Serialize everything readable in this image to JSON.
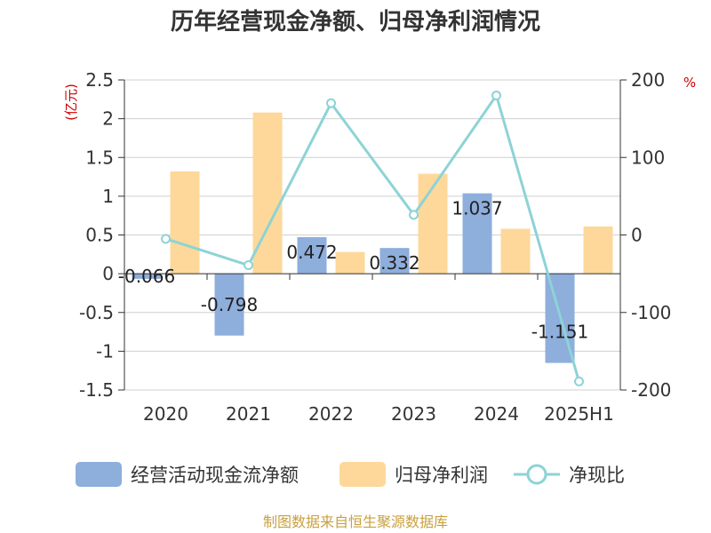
{
  "chart_data": {
    "type": "bar",
    "title": "历年经营现金净额、归母净利润情况",
    "categories": [
      "2020",
      "2021",
      "2022",
      "2023",
      "2024",
      "2025H1"
    ],
    "left_axis": {
      "unit": "(亿元)",
      "ylim": [
        -1.5,
        2.5
      ],
      "ticks": [
        2.5,
        2,
        1.5,
        1,
        0.5,
        0,
        -0.5,
        -1,
        -1.5
      ],
      "tick_labels": [
        "2.5",
        "2",
        "1.5",
        "1",
        "0.5",
        "0",
        "-0.5",
        "-1",
        "-1.5"
      ]
    },
    "right_axis": {
      "unit": "%",
      "ylim": [
        -200,
        200
      ],
      "ticks": [
        200,
        100,
        0,
        -100,
        -200
      ],
      "tick_labels": [
        "200",
        "100",
        "0",
        "-100",
        "-200"
      ]
    },
    "series": [
      {
        "name": "经营活动现金流净额",
        "type": "bar",
        "axis": "left",
        "color": "#8eaedc",
        "values": [
          -0.066,
          -0.798,
          0.472,
          0.332,
          1.037,
          -1.151
        ],
        "labels": [
          "-0.066",
          "-0.798",
          "0.472",
          "0.332",
          "1.037",
          "-1.151"
        ]
      },
      {
        "name": "归母净利润",
        "type": "bar",
        "axis": "left",
        "color": "#fdd89a",
        "values": [
          1.32,
          2.08,
          0.28,
          1.29,
          0.58,
          0.61
        ]
      },
      {
        "name": "净现比",
        "type": "line",
        "axis": "right",
        "color": "#8dd3d6",
        "values": [
          -5,
          -39,
          170,
          26,
          180,
          -189
        ]
      }
    ],
    "grid": true,
    "legend_position": "bottom"
  },
  "source": "制图数据来自恒生聚源数据库"
}
